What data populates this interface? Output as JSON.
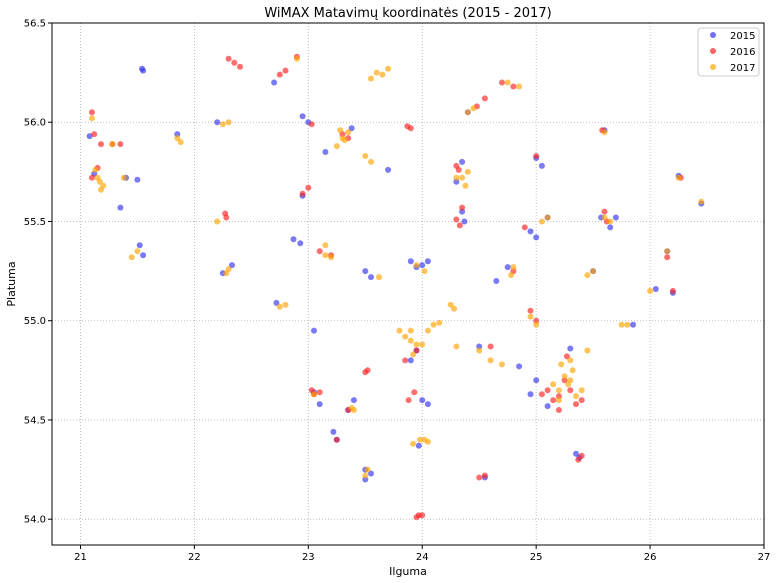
{
  "chart_data": {
    "type": "scatter",
    "title": "WiMAX Matavimų koordinatės (2015 - 2017)",
    "xlabel": "Ilguma",
    "ylabel": "Platuma",
    "xlim": [
      20.75,
      27.0
    ],
    "ylim": [
      53.87,
      56.5
    ],
    "xticks": [
      "21",
      "22",
      "23",
      "24",
      "25",
      "26",
      "27"
    ],
    "yticks": [
      "54.0",
      "54.5",
      "55.0",
      "55.5",
      "56.0",
      "56.5"
    ],
    "grid": true,
    "legend_position": "top-right",
    "series": [
      {
        "name": "2015",
        "color": "#3333ee",
        "points": [
          [
            21.54,
            56.27
          ],
          [
            21.55,
            56.26
          ],
          [
            21.08,
            55.93
          ],
          [
            21.12,
            55.74
          ],
          [
            21.4,
            55.72
          ],
          [
            21.5,
            55.71
          ],
          [
            21.35,
            55.57
          ],
          [
            21.52,
            55.38
          ],
          [
            21.55,
            55.33
          ],
          [
            21.85,
            55.94
          ],
          [
            22.2,
            56.0
          ],
          [
            22.33,
            55.28
          ],
          [
            22.25,
            55.24
          ],
          [
            22.7,
            56.2
          ],
          [
            22.72,
            55.09
          ],
          [
            22.87,
            55.41
          ],
          [
            22.93,
            55.39
          ],
          [
            22.95,
            56.03
          ],
          [
            23.0,
            56.0
          ],
          [
            22.95,
            55.63
          ],
          [
            23.15,
            55.85
          ],
          [
            23.38,
            55.97
          ],
          [
            23.05,
            54.95
          ],
          [
            23.05,
            54.64
          ],
          [
            23.1,
            54.58
          ],
          [
            23.22,
            54.44
          ],
          [
            23.25,
            54.4
          ],
          [
            23.4,
            54.6
          ],
          [
            23.35,
            54.55
          ],
          [
            23.5,
            55.25
          ],
          [
            23.55,
            55.22
          ],
          [
            23.5,
            54.25
          ],
          [
            23.5,
            54.2
          ],
          [
            23.55,
            54.23
          ],
          [
            23.7,
            55.76
          ],
          [
            23.9,
            55.3
          ],
          [
            23.95,
            55.27
          ],
          [
            24.0,
            55.28
          ],
          [
            24.05,
            55.3
          ],
          [
            24.0,
            54.6
          ],
          [
            24.05,
            54.58
          ],
          [
            23.9,
            54.8
          ],
          [
            23.95,
            54.85
          ],
          [
            23.97,
            54.37
          ],
          [
            24.35,
            55.55
          ],
          [
            24.37,
            55.5
          ],
          [
            24.35,
            55.8
          ],
          [
            24.3,
            55.7
          ],
          [
            24.4,
            56.05
          ],
          [
            24.5,
            54.87
          ],
          [
            24.55,
            54.21
          ],
          [
            24.65,
            55.2
          ],
          [
            24.75,
            55.27
          ],
          [
            24.85,
            54.77
          ],
          [
            24.95,
            54.63
          ],
          [
            25.0,
            55.82
          ],
          [
            25.05,
            55.78
          ],
          [
            25.1,
            55.52
          ],
          [
            24.95,
            55.45
          ],
          [
            25.0,
            55.42
          ],
          [
            25.0,
            54.7
          ],
          [
            25.1,
            54.57
          ],
          [
            25.3,
            54.86
          ],
          [
            25.35,
            54.33
          ],
          [
            25.38,
            54.31
          ],
          [
            25.5,
            55.25
          ],
          [
            25.57,
            55.52
          ],
          [
            25.7,
            55.52
          ],
          [
            25.65,
            55.47
          ],
          [
            25.6,
            55.96
          ],
          [
            25.85,
            54.98
          ],
          [
            26.05,
            55.16
          ],
          [
            26.25,
            55.73
          ],
          [
            26.45,
            55.59
          ],
          [
            26.15,
            55.35
          ],
          [
            26.2,
            55.14
          ]
        ]
      },
      {
        "name": "2016",
        "color": "#ff2020",
        "points": [
          [
            22.35,
            56.3
          ],
          [
            22.3,
            56.32
          ],
          [
            22.4,
            56.28
          ],
          [
            22.75,
            56.24
          ],
          [
            22.8,
            56.26
          ],
          [
            22.9,
            56.33
          ],
          [
            23.03,
            55.99
          ],
          [
            22.95,
            55.64
          ],
          [
            23.0,
            55.67
          ],
          [
            23.3,
            55.94
          ],
          [
            23.35,
            55.92
          ],
          [
            23.87,
            55.98
          ],
          [
            23.9,
            55.97
          ],
          [
            21.15,
            55.77
          ],
          [
            21.1,
            55.72
          ],
          [
            21.12,
            55.94
          ],
          [
            21.18,
            55.89
          ],
          [
            21.28,
            55.89
          ],
          [
            21.35,
            55.89
          ],
          [
            21.1,
            56.05
          ],
          [
            22.27,
            55.54
          ],
          [
            22.28,
            55.52
          ],
          [
            23.2,
            55.33
          ],
          [
            23.1,
            55.35
          ],
          [
            23.03,
            54.65
          ],
          [
            23.05,
            54.63
          ],
          [
            23.1,
            54.64
          ],
          [
            23.25,
            54.4
          ],
          [
            23.35,
            54.55
          ],
          [
            23.5,
            54.74
          ],
          [
            23.52,
            54.75
          ],
          [
            23.85,
            54.8
          ],
          [
            23.95,
            54.85
          ],
          [
            23.88,
            54.6
          ],
          [
            23.93,
            54.64
          ],
          [
            23.97,
            54.02
          ],
          [
            24.0,
            54.02
          ],
          [
            23.95,
            54.01
          ],
          [
            24.5,
            54.21
          ],
          [
            24.55,
            54.22
          ],
          [
            24.3,
            55.51
          ],
          [
            24.33,
            55.48
          ],
          [
            24.35,
            55.57
          ],
          [
            24.3,
            55.78
          ],
          [
            24.32,
            55.76
          ],
          [
            24.55,
            56.12
          ],
          [
            24.48,
            56.08
          ],
          [
            24.7,
            56.2
          ],
          [
            24.8,
            56.18
          ],
          [
            24.6,
            54.87
          ],
          [
            24.8,
            55.25
          ],
          [
            24.9,
            55.47
          ],
          [
            24.95,
            55.05
          ],
          [
            25.0,
            55.0
          ],
          [
            25.0,
            55.83
          ],
          [
            25.15,
            54.6
          ],
          [
            25.2,
            54.62
          ],
          [
            25.25,
            54.7
          ],
          [
            25.3,
            54.65
          ],
          [
            25.35,
            54.58
          ],
          [
            25.27,
            54.82
          ],
          [
            25.4,
            54.6
          ],
          [
            25.37,
            54.3
          ],
          [
            25.4,
            54.32
          ],
          [
            25.1,
            54.65
          ],
          [
            25.05,
            54.63
          ],
          [
            25.2,
            54.55
          ],
          [
            25.6,
            55.55
          ],
          [
            25.62,
            55.5
          ],
          [
            26.15,
            55.32
          ],
          [
            26.2,
            55.15
          ],
          [
            26.27,
            55.72
          ],
          [
            25.58,
            55.96
          ]
        ]
      },
      {
        "name": "2017",
        "color": "#ffa500",
        "points": [
          [
            21.15,
            55.72
          ],
          [
            21.17,
            55.7
          ],
          [
            21.2,
            55.68
          ],
          [
            21.13,
            55.76
          ],
          [
            21.18,
            55.66
          ],
          [
            21.1,
            56.02
          ],
          [
            21.28,
            55.89
          ],
          [
            21.38,
            55.72
          ],
          [
            21.5,
            55.35
          ],
          [
            21.45,
            55.32
          ],
          [
            21.85,
            55.92
          ],
          [
            21.88,
            55.9
          ],
          [
            22.25,
            55.99
          ],
          [
            22.3,
            56.0
          ],
          [
            22.2,
            55.5
          ],
          [
            22.3,
            55.26
          ],
          [
            22.28,
            55.24
          ],
          [
            22.8,
            55.08
          ],
          [
            22.75,
            55.07
          ],
          [
            22.9,
            56.32
          ],
          [
            23.15,
            55.38
          ],
          [
            23.15,
            55.33
          ],
          [
            23.2,
            55.32
          ],
          [
            23.25,
            55.88
          ],
          [
            23.3,
            55.92
          ],
          [
            23.35,
            55.95
          ],
          [
            23.28,
            55.96
          ],
          [
            23.32,
            55.91
          ],
          [
            23.5,
            55.83
          ],
          [
            23.55,
            55.8
          ],
          [
            23.6,
            56.25
          ],
          [
            23.65,
            56.24
          ],
          [
            23.55,
            56.22
          ],
          [
            23.7,
            56.27
          ],
          [
            23.62,
            55.22
          ],
          [
            23.9,
            54.9
          ],
          [
            23.95,
            54.88
          ],
          [
            23.92,
            54.83
          ],
          [
            24.05,
            54.95
          ],
          [
            24.1,
            54.98
          ],
          [
            24.15,
            54.99
          ],
          [
            23.85,
            54.92
          ],
          [
            23.8,
            54.95
          ],
          [
            23.9,
            54.95
          ],
          [
            24.0,
            54.88
          ],
          [
            23.98,
            54.4
          ],
          [
            24.02,
            54.4
          ],
          [
            24.05,
            54.39
          ],
          [
            23.92,
            54.38
          ],
          [
            23.95,
            55.28
          ],
          [
            24.02,
            55.25
          ],
          [
            24.25,
            55.08
          ],
          [
            24.28,
            55.06
          ],
          [
            24.3,
            55.72
          ],
          [
            24.35,
            55.72
          ],
          [
            24.38,
            55.68
          ],
          [
            24.4,
            55.75
          ],
          [
            24.4,
            56.05
          ],
          [
            24.45,
            56.07
          ],
          [
            24.3,
            54.87
          ],
          [
            24.5,
            54.85
          ],
          [
            24.6,
            54.8
          ],
          [
            24.7,
            54.78
          ],
          [
            24.75,
            56.2
          ],
          [
            24.85,
            56.18
          ],
          [
            24.8,
            55.27
          ],
          [
            24.78,
            55.23
          ],
          [
            24.95,
            55.02
          ],
          [
            25.0,
            54.98
          ],
          [
            25.05,
            55.5
          ],
          [
            25.1,
            55.52
          ],
          [
            25.2,
            54.65
          ],
          [
            25.25,
            54.72
          ],
          [
            25.3,
            54.7
          ],
          [
            25.28,
            54.68
          ],
          [
            25.32,
            54.75
          ],
          [
            25.15,
            54.68
          ],
          [
            25.2,
            54.6
          ],
          [
            25.35,
            54.62
          ],
          [
            25.22,
            54.78
          ],
          [
            25.3,
            54.8
          ],
          [
            25.4,
            54.65
          ],
          [
            25.45,
            54.85
          ],
          [
            25.45,
            55.23
          ],
          [
            25.5,
            55.25
          ],
          [
            25.6,
            55.95
          ],
          [
            25.65,
            55.5
          ],
          [
            25.75,
            54.98
          ],
          [
            25.8,
            54.98
          ],
          [
            26.0,
            55.15
          ],
          [
            26.15,
            55.35
          ],
          [
            26.25,
            55.72
          ],
          [
            26.45,
            55.6
          ],
          [
            23.52,
            54.25
          ],
          [
            23.5,
            54.22
          ],
          [
            23.38,
            54.56
          ],
          [
            23.4,
            54.55
          ],
          [
            23.05,
            54.63
          ],
          [
            25.6,
            55.52
          ]
        ]
      }
    ]
  }
}
